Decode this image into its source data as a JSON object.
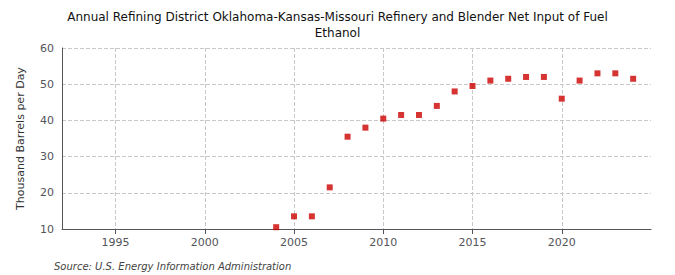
{
  "chart_data": {
    "type": "scatter",
    "title": "Annual Refining District Oklahoma-Kansas-Missouri Refinery and Blender Net Input of Fuel\nEthanol",
    "ylabel": "Thousand Barrels per Day",
    "annotation": "Source: U.S. Energy Information Administration",
    "x": [
      2004,
      2005,
      2006,
      2007,
      2008,
      2009,
      2010,
      2011,
      2012,
      2013,
      2014,
      2015,
      2016,
      2017,
      2018,
      2019,
      2020,
      2021,
      2022,
      2023,
      2024
    ],
    "values": [
      10.5,
      13.5,
      13.5,
      21.5,
      35.5,
      38.0,
      40.5,
      41.5,
      41.5,
      44.0,
      48.0,
      49.5,
      51.0,
      51.5,
      52.0,
      52.0,
      46.0,
      51.0,
      53.0,
      53.0,
      51.5
    ],
    "color": "#cc0000",
    "marker": "square",
    "xlim": [
      1992,
      2025
    ],
    "xticks": [
      1995,
      2000,
      2005,
      2010,
      2015,
      2020
    ],
    "ylim": [
      10,
      60
    ],
    "yticks": [
      10,
      20,
      30,
      40,
      50,
      60
    ],
    "grid": true
  }
}
